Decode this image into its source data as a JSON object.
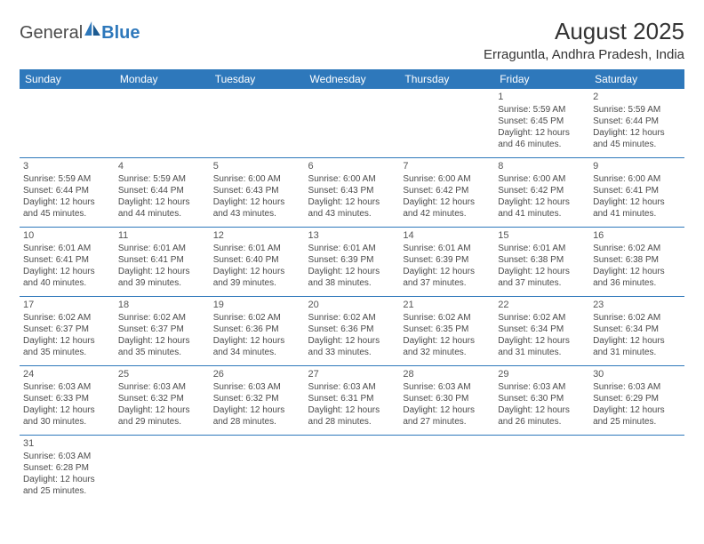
{
  "logo": {
    "text1": "General",
    "text2": "Blue"
  },
  "title": "August 2025",
  "location": "Erraguntla, Andhra Pradesh, India",
  "colors": {
    "header_bg": "#2e78bb",
    "header_text": "#ffffff",
    "border": "#2e78bb",
    "text": "#4a4a4a",
    "title_text": "#333333"
  },
  "day_headers": [
    "Sunday",
    "Monday",
    "Tuesday",
    "Wednesday",
    "Thursday",
    "Friday",
    "Saturday"
  ],
  "weeks": [
    [
      null,
      null,
      null,
      null,
      null,
      {
        "n": "1",
        "sr": "5:59 AM",
        "ss": "6:45 PM",
        "dl": "12 hours and 46 minutes."
      },
      {
        "n": "2",
        "sr": "5:59 AM",
        "ss": "6:44 PM",
        "dl": "12 hours and 45 minutes."
      }
    ],
    [
      {
        "n": "3",
        "sr": "5:59 AM",
        "ss": "6:44 PM",
        "dl": "12 hours and 45 minutes."
      },
      {
        "n": "4",
        "sr": "5:59 AM",
        "ss": "6:44 PM",
        "dl": "12 hours and 44 minutes."
      },
      {
        "n": "5",
        "sr": "6:00 AM",
        "ss": "6:43 PM",
        "dl": "12 hours and 43 minutes."
      },
      {
        "n": "6",
        "sr": "6:00 AM",
        "ss": "6:43 PM",
        "dl": "12 hours and 43 minutes."
      },
      {
        "n": "7",
        "sr": "6:00 AM",
        "ss": "6:42 PM",
        "dl": "12 hours and 42 minutes."
      },
      {
        "n": "8",
        "sr": "6:00 AM",
        "ss": "6:42 PM",
        "dl": "12 hours and 41 minutes."
      },
      {
        "n": "9",
        "sr": "6:00 AM",
        "ss": "6:41 PM",
        "dl": "12 hours and 41 minutes."
      }
    ],
    [
      {
        "n": "10",
        "sr": "6:01 AM",
        "ss": "6:41 PM",
        "dl": "12 hours and 40 minutes."
      },
      {
        "n": "11",
        "sr": "6:01 AM",
        "ss": "6:41 PM",
        "dl": "12 hours and 39 minutes."
      },
      {
        "n": "12",
        "sr": "6:01 AM",
        "ss": "6:40 PM",
        "dl": "12 hours and 39 minutes."
      },
      {
        "n": "13",
        "sr": "6:01 AM",
        "ss": "6:39 PM",
        "dl": "12 hours and 38 minutes."
      },
      {
        "n": "14",
        "sr": "6:01 AM",
        "ss": "6:39 PM",
        "dl": "12 hours and 37 minutes."
      },
      {
        "n": "15",
        "sr": "6:01 AM",
        "ss": "6:38 PM",
        "dl": "12 hours and 37 minutes."
      },
      {
        "n": "16",
        "sr": "6:02 AM",
        "ss": "6:38 PM",
        "dl": "12 hours and 36 minutes."
      }
    ],
    [
      {
        "n": "17",
        "sr": "6:02 AM",
        "ss": "6:37 PM",
        "dl": "12 hours and 35 minutes."
      },
      {
        "n": "18",
        "sr": "6:02 AM",
        "ss": "6:37 PM",
        "dl": "12 hours and 35 minutes."
      },
      {
        "n": "19",
        "sr": "6:02 AM",
        "ss": "6:36 PM",
        "dl": "12 hours and 34 minutes."
      },
      {
        "n": "20",
        "sr": "6:02 AM",
        "ss": "6:36 PM",
        "dl": "12 hours and 33 minutes."
      },
      {
        "n": "21",
        "sr": "6:02 AM",
        "ss": "6:35 PM",
        "dl": "12 hours and 32 minutes."
      },
      {
        "n": "22",
        "sr": "6:02 AM",
        "ss": "6:34 PM",
        "dl": "12 hours and 31 minutes."
      },
      {
        "n": "23",
        "sr": "6:02 AM",
        "ss": "6:34 PM",
        "dl": "12 hours and 31 minutes."
      }
    ],
    [
      {
        "n": "24",
        "sr": "6:03 AM",
        "ss": "6:33 PM",
        "dl": "12 hours and 30 minutes."
      },
      {
        "n": "25",
        "sr": "6:03 AM",
        "ss": "6:32 PM",
        "dl": "12 hours and 29 minutes."
      },
      {
        "n": "26",
        "sr": "6:03 AM",
        "ss": "6:32 PM",
        "dl": "12 hours and 28 minutes."
      },
      {
        "n": "27",
        "sr": "6:03 AM",
        "ss": "6:31 PM",
        "dl": "12 hours and 28 minutes."
      },
      {
        "n": "28",
        "sr": "6:03 AM",
        "ss": "6:30 PM",
        "dl": "12 hours and 27 minutes."
      },
      {
        "n": "29",
        "sr": "6:03 AM",
        "ss": "6:30 PM",
        "dl": "12 hours and 26 minutes."
      },
      {
        "n": "30",
        "sr": "6:03 AM",
        "ss": "6:29 PM",
        "dl": "12 hours and 25 minutes."
      }
    ],
    [
      {
        "n": "31",
        "sr": "6:03 AM",
        "ss": "6:28 PM",
        "dl": "12 hours and 25 minutes."
      },
      null,
      null,
      null,
      null,
      null,
      null
    ]
  ],
  "labels": {
    "sunrise": "Sunrise:",
    "sunset": "Sunset:",
    "daylight": "Daylight:"
  }
}
